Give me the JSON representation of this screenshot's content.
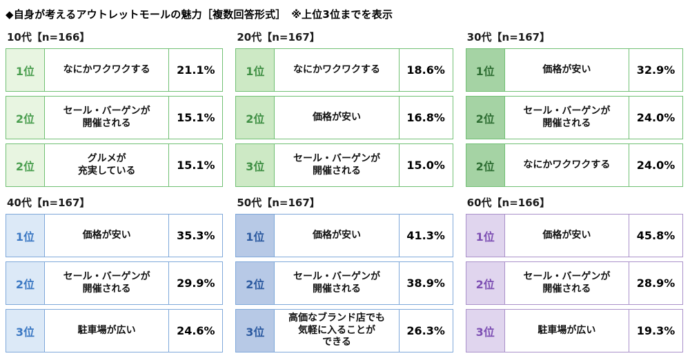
{
  "title": "◆自身が考えるアウトレットモールの魅力［複数回答形式］　※上位3位までを表示",
  "panels": [
    {
      "header": "10代【n=166】",
      "colors": {
        "border": "#6fbf72",
        "rank_bg": "#e8f5e1",
        "rank_text": "#4a9e4f"
      },
      "rows": [
        {
          "rank": "1位",
          "label": "なにかワクワクする",
          "value": "21.1%"
        },
        {
          "rank": "2位",
          "label": "セール・バーゲンが\n開催される",
          "value": "15.1%"
        },
        {
          "rank": "2位",
          "label": "グルメが\n充実している",
          "value": "15.1%"
        }
      ]
    },
    {
      "header": "20代【n=167】",
      "colors": {
        "border": "#6fbf72",
        "rank_bg": "#cde9c5",
        "rank_text": "#3f8f44"
      },
      "rows": [
        {
          "rank": "1位",
          "label": "なにかワクワクする",
          "value": "18.6%"
        },
        {
          "rank": "2位",
          "label": "価格が安い",
          "value": "16.8%"
        },
        {
          "rank": "3位",
          "label": "セール・バーゲンが\n開催される",
          "value": "15.0%"
        }
      ]
    },
    {
      "header": "30代【n=167】",
      "colors": {
        "border": "#6fbf72",
        "rank_bg": "#a5d3a4",
        "rank_text": "#2e6e33"
      },
      "rows": [
        {
          "rank": "1位",
          "label": "価格が安い",
          "value": "32.9%"
        },
        {
          "rank": "2位",
          "label": "セール・バーゲンが\n開催される",
          "value": "24.0%"
        },
        {
          "rank": "2位",
          "label": "なにかワクワクする",
          "value": "24.0%"
        }
      ]
    },
    {
      "header": "40代【n=167】",
      "colors": {
        "border": "#7da7d9",
        "rank_bg": "#dce9f7",
        "rank_text": "#3b78c3"
      },
      "rows": [
        {
          "rank": "1位",
          "label": "価格が安い",
          "value": "35.3%"
        },
        {
          "rank": "2位",
          "label": "セール・バーゲンが\n開催される",
          "value": "29.9%"
        },
        {
          "rank": "3位",
          "label": "駐車場が広い",
          "value": "24.6%"
        }
      ]
    },
    {
      "header": "50代【n=167】",
      "colors": {
        "border": "#7da7d9",
        "rank_bg": "#b7c9e6",
        "rank_text": "#2c5aa0"
      },
      "rows": [
        {
          "rank": "1位",
          "label": "価格が安い",
          "value": "41.3%"
        },
        {
          "rank": "2位",
          "label": "セール・バーゲンが\n開催される",
          "value": "38.9%"
        },
        {
          "rank": "3位",
          "label": "高価なブランド店でも\n気軽に入ることが\nできる",
          "value": "26.3%"
        }
      ]
    },
    {
      "header": "60代【n=166】",
      "colors": {
        "border": "#a98fc9",
        "rank_bg": "#e0d5ee",
        "rank_text": "#7d4fb3"
      },
      "rows": [
        {
          "rank": "1位",
          "label": "価格が安い",
          "value": "45.8%"
        },
        {
          "rank": "2位",
          "label": "セール・バーゲンが\n開催される",
          "value": "28.9%"
        },
        {
          "rank": "3位",
          "label": "駐車場が広い",
          "value": "19.3%"
        }
      ]
    }
  ],
  "chart_data": {
    "type": "table",
    "title": "自身が考えるアウトレットモールの魅力［複数回答形式］ ※上位3位までを表示",
    "groups": [
      {
        "group": "10代",
        "n": 166,
        "rows": [
          {
            "rank": "1位",
            "item": "なにかワクワクする",
            "pct": 21.1
          },
          {
            "rank": "2位",
            "item": "セール・バーゲンが開催される",
            "pct": 15.1
          },
          {
            "rank": "2位",
            "item": "グルメが充実している",
            "pct": 15.1
          }
        ]
      },
      {
        "group": "20代",
        "n": 167,
        "rows": [
          {
            "rank": "1位",
            "item": "なにかワクワクする",
            "pct": 18.6
          },
          {
            "rank": "2位",
            "item": "価格が安い",
            "pct": 16.8
          },
          {
            "rank": "3位",
            "item": "セール・バーゲンが開催される",
            "pct": 15.0
          }
        ]
      },
      {
        "group": "30代",
        "n": 167,
        "rows": [
          {
            "rank": "1位",
            "item": "価格が安い",
            "pct": 32.9
          },
          {
            "rank": "2位",
            "item": "セール・バーゲンが開催される",
            "pct": 24.0
          },
          {
            "rank": "2位",
            "item": "なにかワクワクする",
            "pct": 24.0
          }
        ]
      },
      {
        "group": "40代",
        "n": 167,
        "rows": [
          {
            "rank": "1位",
            "item": "価格が安い",
            "pct": 35.3
          },
          {
            "rank": "2位",
            "item": "セール・バーゲンが開催される",
            "pct": 29.9
          },
          {
            "rank": "3位",
            "item": "駐車場が広い",
            "pct": 24.6
          }
        ]
      },
      {
        "group": "50代",
        "n": 167,
        "rows": [
          {
            "rank": "1位",
            "item": "価格が安い",
            "pct": 41.3
          },
          {
            "rank": "2位",
            "item": "セール・バーゲンが開催される",
            "pct": 38.9
          },
          {
            "rank": "3位",
            "item": "高価なブランド店でも気軽に入ることができる",
            "pct": 26.3
          }
        ]
      },
      {
        "group": "60代",
        "n": 166,
        "rows": [
          {
            "rank": "1位",
            "item": "価格が安い",
            "pct": 45.8
          },
          {
            "rank": "2位",
            "item": "セール・バーゲンが開催される",
            "pct": 28.9
          },
          {
            "rank": "3位",
            "item": "駐車場が広い",
            "pct": 19.3
          }
        ]
      }
    ]
  }
}
